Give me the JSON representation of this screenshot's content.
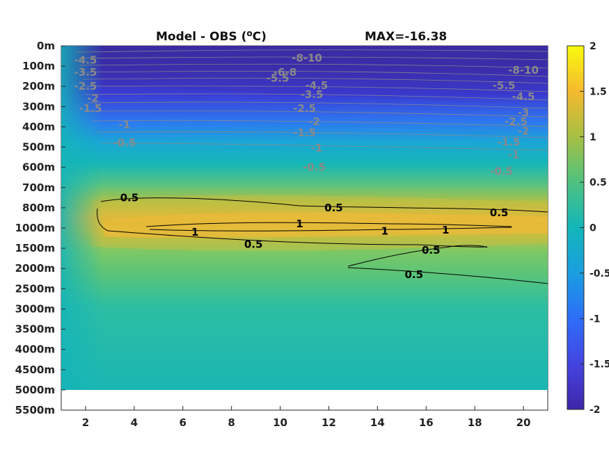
{
  "chart_data": {
    "type": "heatmap",
    "title_left": "Model - OBS (",
    "title_unit_sup": "o",
    "title_unit_end": "C)",
    "title_right": "MAX=-16.38",
    "y_tick_labels": [
      "0m",
      "100m",
      "200m",
      "300m",
      "400m",
      "500m",
      "600m",
      "700m",
      "800m",
      "1000m",
      "1500m",
      "2000m",
      "2500m",
      "3000m",
      "3500m",
      "4000m",
      "4500m",
      "5000m",
      "5500m"
    ],
    "x_ticks": [
      2,
      4,
      6,
      8,
      10,
      12,
      14,
      16,
      18,
      20
    ],
    "xlim": [
      1,
      21
    ],
    "colorbar": {
      "min": -2,
      "max": 2,
      "ticks": [
        2,
        1.5,
        1,
        0.5,
        0,
        -0.5,
        -1,
        -1.5,
        -2
      ],
      "tick_labels": [
        "2",
        "1.5",
        "1",
        "0.5",
        "0",
        "-0.5",
        "-1",
        "-1.5",
        "-2"
      ]
    },
    "colors": {
      "low": "#3e26a8",
      "mid": "#1fb5b5",
      "high": "#f9fb0e",
      "contour_neg": "#8a8a8a",
      "contour_pos": "#000000"
    },
    "field_summary": [
      {
        "depth": "0m",
        "value": -2
      },
      {
        "depth": "300m",
        "value": -1.5
      },
      {
        "depth": "500m",
        "value": -0.5
      },
      {
        "depth": "700m",
        "value": 0.3
      },
      {
        "depth": "1000m",
        "value": 1.1
      },
      {
        "depth": "2000m",
        "value": 0.3
      },
      {
        "depth": "5000m",
        "value": 0.05
      }
    ],
    "contour_labels": [
      {
        "text": "-4.5",
        "x": 2.0,
        "row": 0.7,
        "sign": "neg"
      },
      {
        "text": "-3.5",
        "x": 2.0,
        "row": 1.3,
        "sign": "neg"
      },
      {
        "text": "-2.5",
        "x": 2.0,
        "row": 2.0,
        "sign": "neg"
      },
      {
        "text": "-2",
        "x": 2.3,
        "row": 2.6,
        "sign": "neg"
      },
      {
        "text": "-1.5",
        "x": 2.2,
        "row": 3.1,
        "sign": "neg"
      },
      {
        "text": "-1",
        "x": 3.6,
        "row": 3.9,
        "sign": "neg"
      },
      {
        "text": "-0.5",
        "x": 3.6,
        "row": 4.8,
        "sign": "neg"
      },
      {
        "text": "-8-10",
        "x": 11.1,
        "row": 0.6,
        "sign": "neg"
      },
      {
        "text": "-6-8",
        "x": 10.2,
        "row": 1.3,
        "sign": "neg"
      },
      {
        "text": "-5.5",
        "x": 9.9,
        "row": 1.6,
        "sign": "neg"
      },
      {
        "text": "-4.5",
        "x": 11.5,
        "row": 1.95,
        "sign": "neg"
      },
      {
        "text": "-3.5",
        "x": 11.3,
        "row": 2.4,
        "sign": "neg"
      },
      {
        "text": "-2.5",
        "x": 11.0,
        "row": 3.1,
        "sign": "neg"
      },
      {
        "text": "-2",
        "x": 11.4,
        "row": 3.75,
        "sign": "neg"
      },
      {
        "text": "-1.5",
        "x": 11.0,
        "row": 4.3,
        "sign": "neg"
      },
      {
        "text": "-1",
        "x": 11.5,
        "row": 5.05,
        "sign": "neg"
      },
      {
        "text": "-0.5",
        "x": 11.4,
        "row": 6.0,
        "sign": "neg"
      },
      {
        "text": "-8-10",
        "x": 20.0,
        "row": 1.2,
        "sign": "neg"
      },
      {
        "text": "-5.5",
        "x": 19.2,
        "row": 1.95,
        "sign": "neg"
      },
      {
        "text": "-4.5",
        "x": 20.0,
        "row": 2.5,
        "sign": "neg"
      },
      {
        "text": "-3",
        "x": 20.0,
        "row": 3.3,
        "sign": "neg"
      },
      {
        "text": "-2.5",
        "x": 19.7,
        "row": 3.75,
        "sign": "neg"
      },
      {
        "text": "-2",
        "x": 20.0,
        "row": 4.2,
        "sign": "neg"
      },
      {
        "text": "-1.5",
        "x": 19.4,
        "row": 4.75,
        "sign": "neg"
      },
      {
        "text": "-1",
        "x": 19.6,
        "row": 5.4,
        "sign": "neg"
      },
      {
        "text": "-0.5",
        "x": 19.1,
        "row": 6.2,
        "sign": "neg"
      },
      {
        "text": "0.5",
        "x": 3.8,
        "row": 7.5,
        "sign": "pos"
      },
      {
        "text": "0.5",
        "x": 12.2,
        "row": 8.0,
        "sign": "pos"
      },
      {
        "text": "0.5",
        "x": 19.0,
        "row": 8.25,
        "sign": "pos"
      },
      {
        "text": "1",
        "x": 10.8,
        "row": 8.8,
        "sign": "pos"
      },
      {
        "text": "1",
        "x": 6.5,
        "row": 9.2,
        "sign": "pos"
      },
      {
        "text": "1",
        "x": 14.3,
        "row": 9.15,
        "sign": "pos"
      },
      {
        "text": "1",
        "x": 16.8,
        "row": 9.1,
        "sign": "pos"
      },
      {
        "text": "0.5",
        "x": 8.9,
        "row": 9.8,
        "sign": "pos"
      },
      {
        "text": "0.5",
        "x": 16.2,
        "row": 10.1,
        "sign": "pos"
      },
      {
        "text": "0.5",
        "x": 15.5,
        "row": 11.3,
        "sign": "pos"
      }
    ]
  }
}
